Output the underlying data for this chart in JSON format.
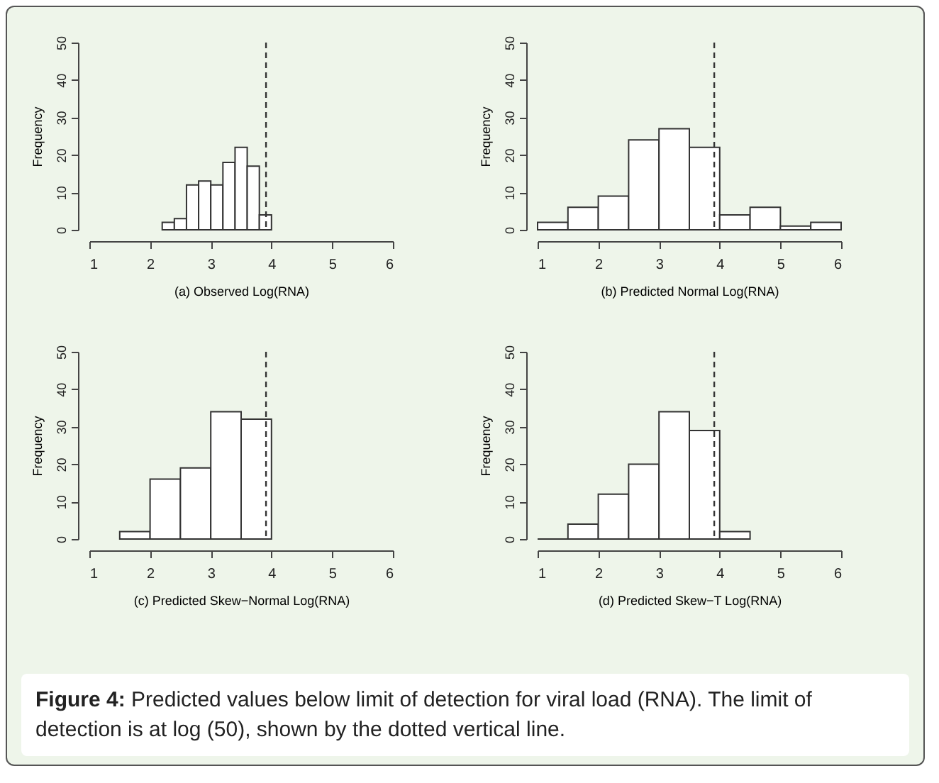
{
  "chart_data": [
    {
      "type": "histogram",
      "xlabel": "(a) Observed Log(RNA)",
      "ylabel": "Frequency",
      "bins": [
        2.2,
        2.4,
        2.6,
        2.8,
        3.0,
        3.2,
        3.4,
        3.6,
        3.8,
        4.0
      ],
      "values": [
        2,
        3,
        12,
        13,
        12,
        18,
        22,
        17,
        4
      ],
      "xlim": [
        1,
        6
      ],
      "xticks": [
        1,
        2,
        3,
        4,
        5,
        6
      ],
      "ylim": [
        0,
        50
      ],
      "yticks": [
        0,
        10,
        20,
        30,
        40,
        50
      ],
      "ref_lines": [
        {
          "axis": "x",
          "value": 3.91,
          "line_style": "dashed"
        }
      ],
      "annotations": [
        "Figure 4: Predicted values below limit of detection for viral load (RNA). The limit of detection is at log (50), shown by the dotted vertical line."
      ]
    },
    {
      "type": "histogram",
      "xlabel": "(b) Predicted Normal Log(RNA)",
      "ylabel": "Frequency",
      "bins": [
        1,
        1.5,
        2,
        2.5,
        3,
        3.5,
        4,
        4.5,
        5,
        5.5,
        6
      ],
      "values": [
        2,
        6,
        9,
        24,
        27,
        22,
        4,
        6,
        1,
        2
      ],
      "xlim": [
        1,
        6
      ],
      "xticks": [
        1,
        2,
        3,
        4,
        5,
        6
      ],
      "ylim": [
        0,
        50
      ],
      "yticks": [
        0,
        10,
        20,
        30,
        40,
        50
      ],
      "ref_lines": [
        {
          "axis": "x",
          "value": 3.91,
          "line_style": "dashed"
        }
      ]
    },
    {
      "type": "histogram",
      "xlabel": "(c) Predicted Skew−Normal Log(RNA)",
      "ylabel": "Frequency",
      "bins": [
        1.5,
        2,
        2.5,
        3,
        3.5,
        4
      ],
      "values": [
        2,
        16,
        19,
        34,
        32
      ],
      "xlim": [
        1,
        6
      ],
      "xticks": [
        1,
        2,
        3,
        4,
        5,
        6
      ],
      "ylim": [
        0,
        50
      ],
      "yticks": [
        0,
        10,
        20,
        30,
        40,
        50
      ],
      "ref_lines": [
        {
          "axis": "x",
          "value": 3.91,
          "line_style": "dashed"
        }
      ]
    },
    {
      "type": "histogram",
      "xlabel": "(d) Predicted Skew−T Log(RNA)",
      "ylabel": "Frequency",
      "bins": [
        1,
        1.5,
        2,
        2.5,
        3,
        3.5,
        4,
        4.5
      ],
      "values": [
        0,
        4,
        12,
        20,
        34,
        29,
        2
      ],
      "xlim": [
        1,
        6
      ],
      "xticks": [
        1,
        2,
        3,
        4,
        5,
        6
      ],
      "ylim": [
        0,
        50
      ],
      "yticks": [
        0,
        10,
        20,
        30,
        40,
        50
      ],
      "ref_lines": [
        {
          "axis": "x",
          "value": 3.91,
          "line_style": "dashed"
        }
      ]
    }
  ]
}
